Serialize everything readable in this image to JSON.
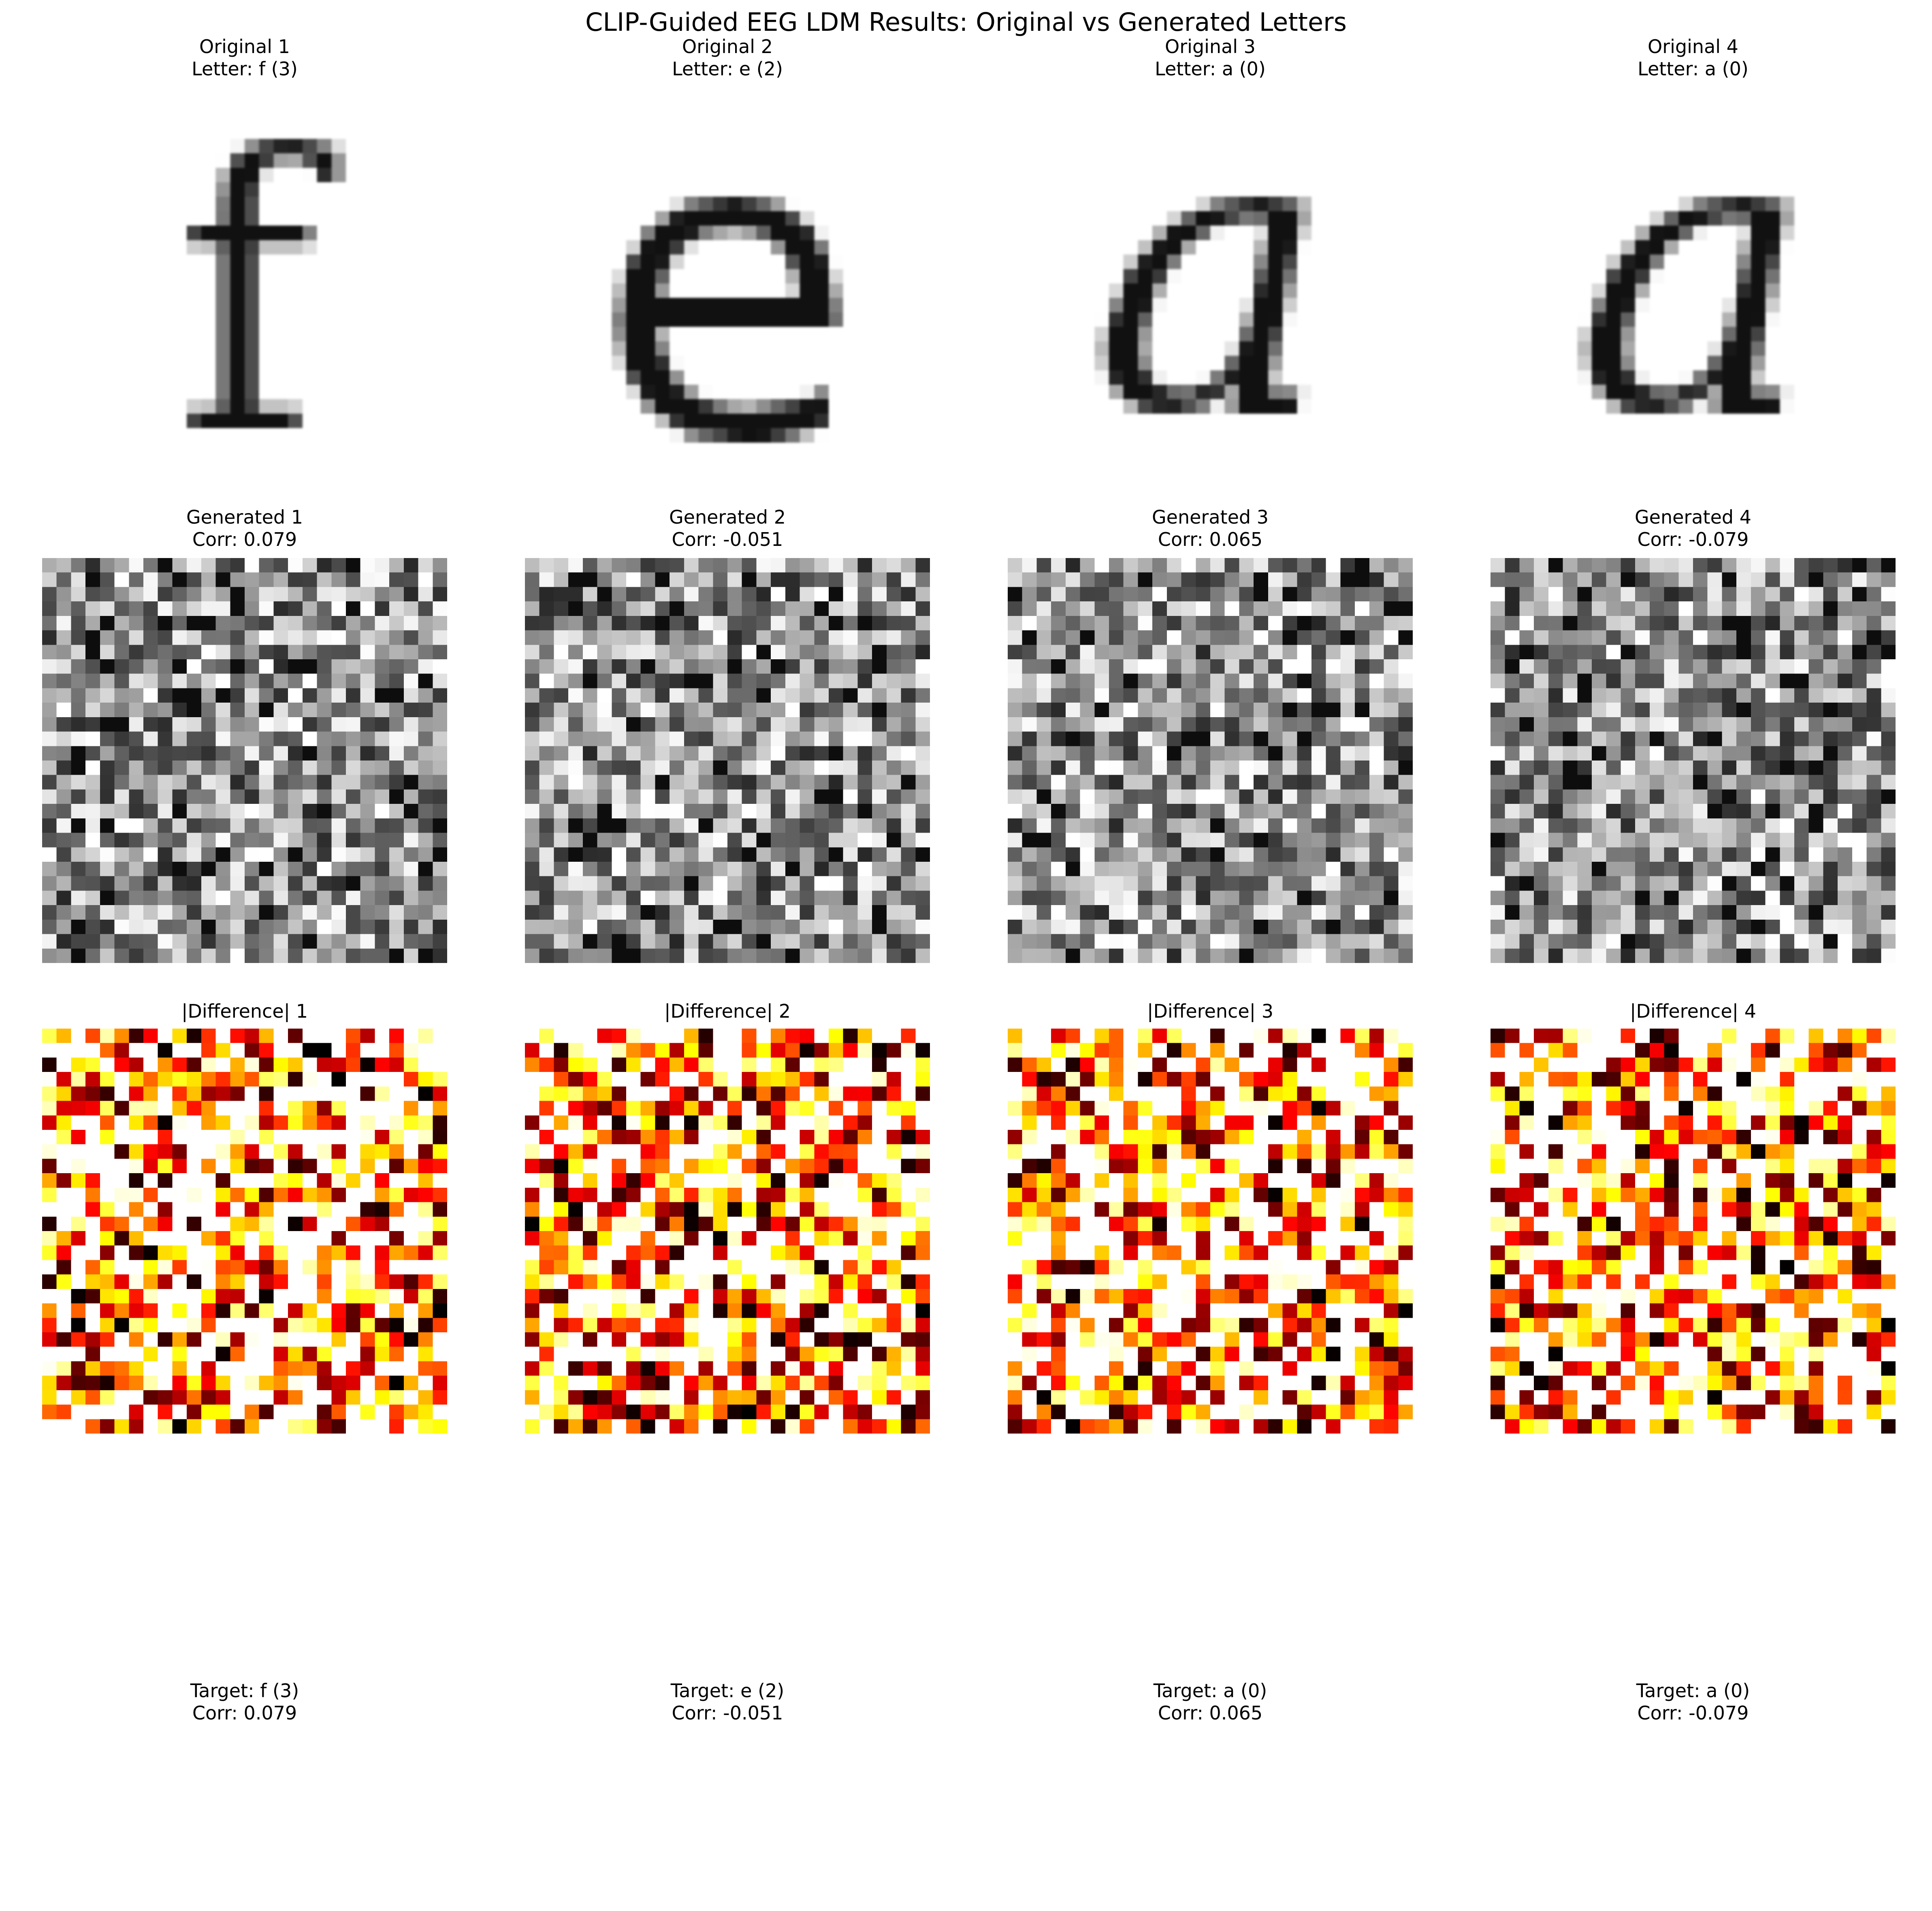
{
  "figure": {
    "title": "CLIP-Guided EEG LDM Results: Original vs Generated Letters",
    "columns": [
      {
        "original": {
          "title": "Original 1",
          "letter": "Letter: f (3)",
          "glyph": "f"
        },
        "generated": {
          "title": "Generated 1",
          "corr": "Corr: 0.079"
        },
        "difference": {
          "title": "|Difference| 1"
        },
        "summary": {
          "target": "Target: f (3)",
          "corr": "Corr: 0.079"
        }
      },
      {
        "original": {
          "title": "Original 2",
          "letter": "Letter: e (2)",
          "glyph": "e"
        },
        "generated": {
          "title": "Generated 2",
          "corr": "Corr: -0.051"
        },
        "difference": {
          "title": "|Difference| 2"
        },
        "summary": {
          "target": "Target: e (2)",
          "corr": "Corr: -0.051"
        }
      },
      {
        "original": {
          "title": "Original 3",
          "letter": "Letter: a (0)",
          "glyph": "a"
        },
        "generated": {
          "title": "Generated 3",
          "corr": "Corr: 0.065"
        },
        "difference": {
          "title": "|Difference| 3"
        },
        "summary": {
          "target": "Target: a (0)",
          "corr": "Corr: 0.065"
        }
      },
      {
        "original": {
          "title": "Original 4",
          "letter": "Letter: a (0)",
          "glyph": "a"
        },
        "generated": {
          "title": "Generated 4",
          "corr": "Corr: -0.079"
        },
        "difference": {
          "title": "|Difference| 4"
        },
        "summary": {
          "target": "Target: a (0)",
          "corr": "Corr: -0.079"
        }
      }
    ],
    "colormaps": {
      "original": "gray_r",
      "generated": "gray_r",
      "difference": "hot_r"
    }
  }
}
